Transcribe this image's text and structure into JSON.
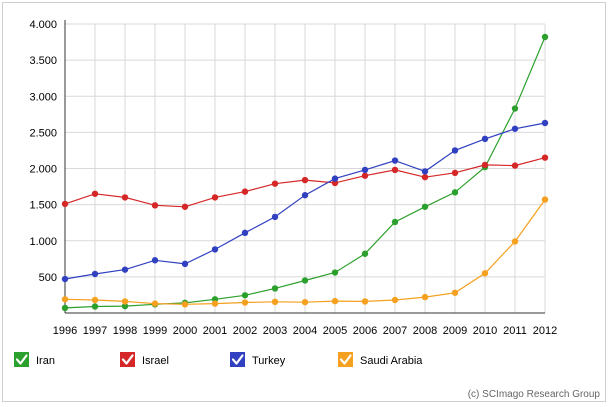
{
  "chart_data": {
    "type": "line",
    "x": [
      1996,
      1997,
      1998,
      1999,
      2000,
      2001,
      2002,
      2003,
      2004,
      2005,
      2006,
      2007,
      2008,
      2009,
      2010,
      2011,
      2012
    ],
    "series": [
      {
        "name": "Iran",
        "color": "#2ca02c",
        "values": [
          70,
          90,
          95,
          120,
          140,
          190,
          245,
          340,
          450,
          560,
          820,
          1260,
          1470,
          1670,
          2020,
          2830,
          3820
        ]
      },
      {
        "name": "Israel",
        "color": "#d62728",
        "values": [
          1510,
          1650,
          1600,
          1490,
          1470,
          1600,
          1680,
          1790,
          1840,
          1800,
          1900,
          1980,
          1880,
          1940,
          2050,
          2040,
          2150
        ]
      },
      {
        "name": "Turkey",
        "color": "#3040c0",
        "values": [
          470,
          540,
          600,
          730,
          680,
          880,
          1110,
          1330,
          1630,
          1860,
          1980,
          2110,
          1960,
          2250,
          2410,
          2550,
          2630
        ]
      },
      {
        "name": "Saudi Arabia",
        "color": "#f5a01e",
        "values": [
          190,
          180,
          160,
          130,
          120,
          130,
          145,
          155,
          150,
          165,
          160,
          180,
          220,
          280,
          550,
          990,
          1570
        ]
      }
    ],
    "yticks": [
      500,
      1000,
      1500,
      2000,
      2500,
      3000,
      3500,
      4000
    ],
    "ytick_labels": [
      "500",
      "1.000",
      "1.500",
      "2.000",
      "2.500",
      "3.000",
      "3.500",
      "4.000"
    ],
    "ylim": [
      0,
      4000
    ],
    "grid": true,
    "legend_placement": "bottom-left",
    "title": "",
    "xlabel": "",
    "ylabel": ""
  },
  "credit": "(c) SCImago Research Group"
}
